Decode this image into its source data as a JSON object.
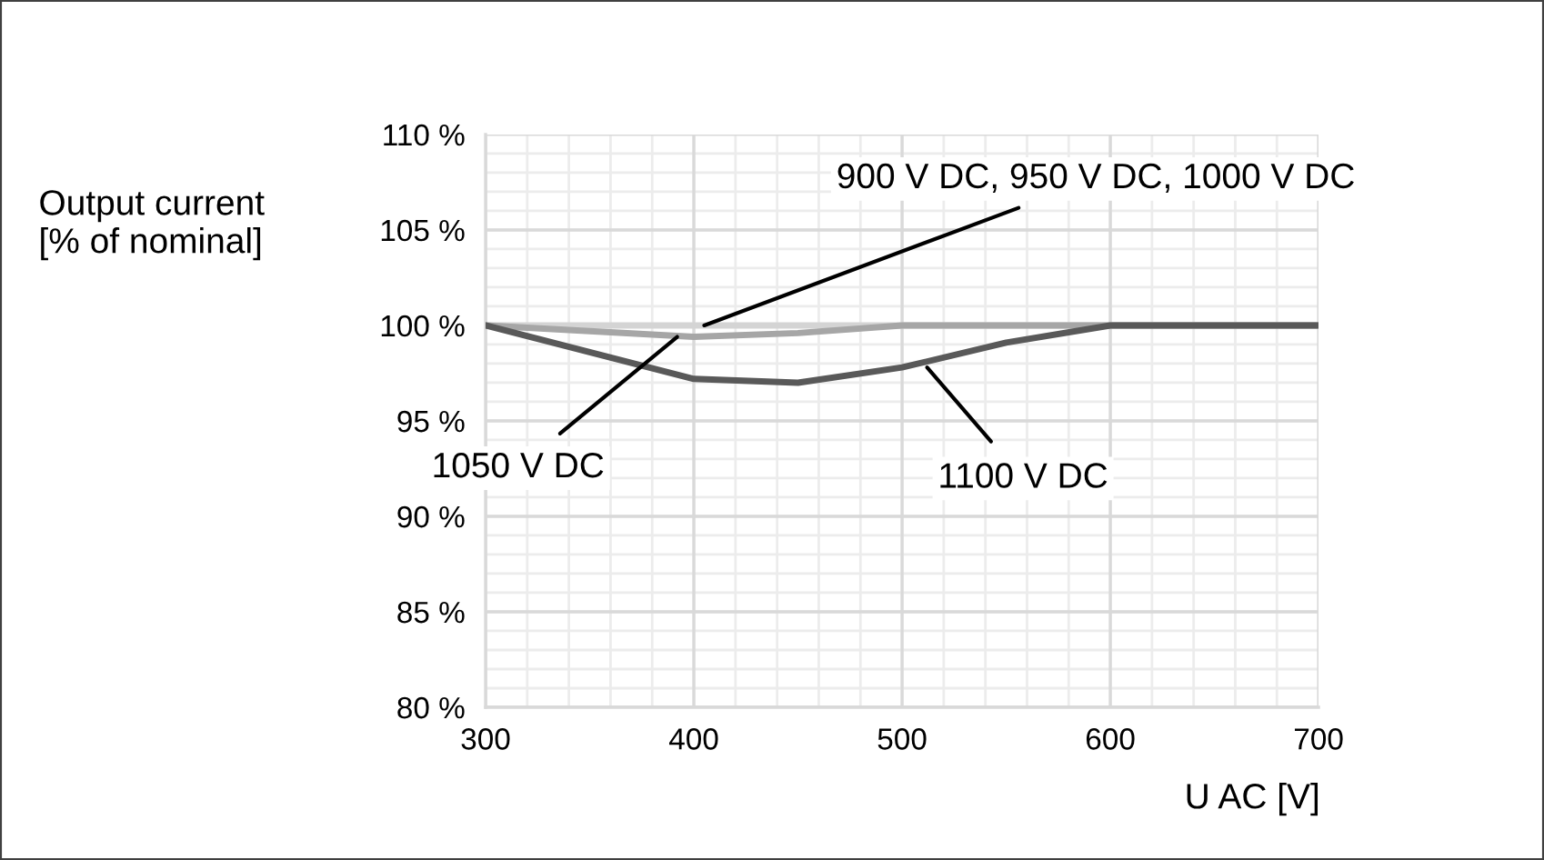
{
  "chart_data": {
    "type": "line",
    "ylabel": "Output current\n[% of nominal]",
    "xlabel": "U AC [V]",
    "x": [
      300,
      400,
      450,
      500,
      550,
      600,
      700
    ],
    "series": [
      {
        "color": "#d4d4d4",
        "values": [
          100,
          100,
          100,
          100,
          100,
          100,
          100
        ]
      },
      {
        "color": "#a6a6a6",
        "values": [
          100,
          99.4,
          99.6,
          100,
          100,
          100,
          100
        ]
      },
      {
        "color": "#595959",
        "values": [
          100,
          97.2,
          97.0,
          97.8,
          99.1,
          100,
          100
        ]
      }
    ],
    "annotations": [
      {
        "text": "900 V DC, 950 V DC, 1000 V DC",
        "x": 405,
        "y": 100
      },
      {
        "text": "1050 V DC",
        "x": 392,
        "y": 99.4
      },
      {
        "text": "1100 V DC",
        "x": 512,
        "y": 97.8
      }
    ],
    "xlim": [
      300,
      700
    ],
    "xticks": [
      300,
      400,
      500,
      600,
      700
    ],
    "ylim": [
      80,
      110
    ],
    "yticks": [
      {
        "value": 80,
        "label": "80 %"
      },
      {
        "value": 85,
        "label": "85 %"
      },
      {
        "value": 90,
        "label": "90 %"
      },
      {
        "value": 95,
        "label": "95 %"
      },
      {
        "value": 100,
        "label": "100 %"
      },
      {
        "value": 105,
        "label": "105 %"
      },
      {
        "value": 110,
        "label": "110 %"
      }
    ],
    "grid": true,
    "legend": false,
    "marker": "none",
    "line_style": "solid"
  }
}
